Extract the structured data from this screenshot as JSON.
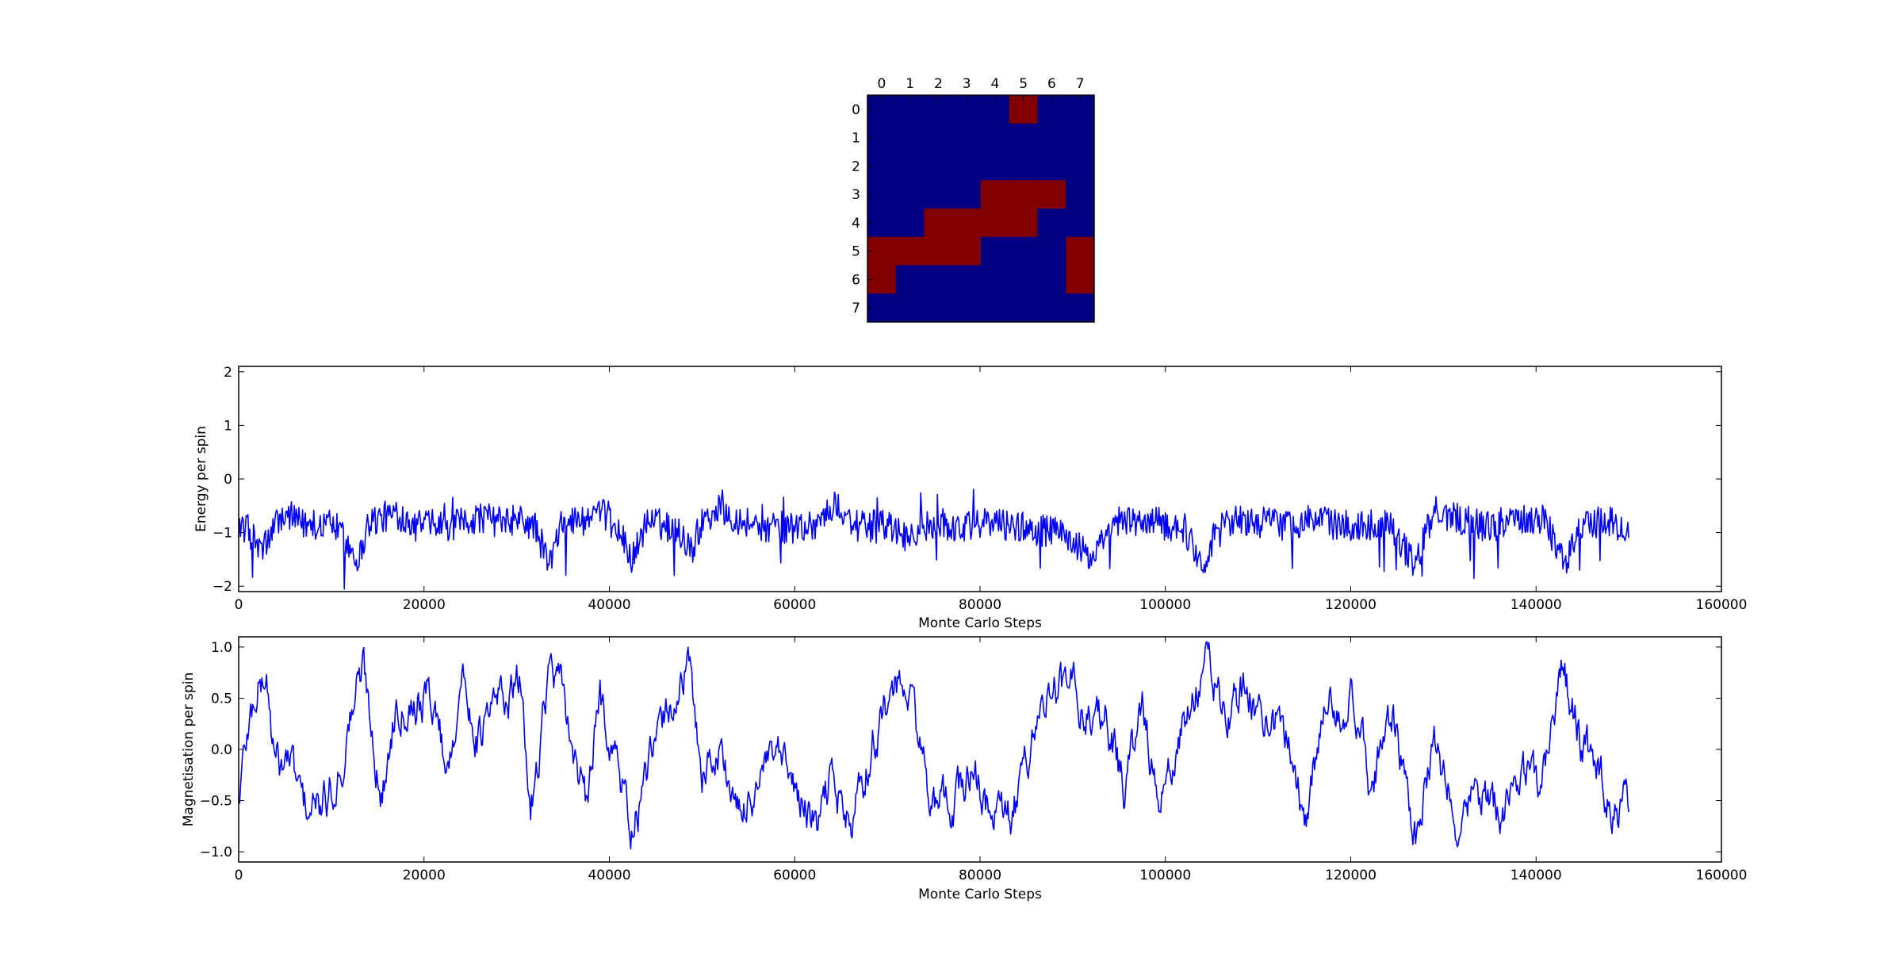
{
  "chart_data": [
    {
      "type": "heatmap",
      "x_ticks": [
        "0",
        "1",
        "2",
        "3",
        "4",
        "5",
        "6",
        "7"
      ],
      "y_ticks": [
        "0",
        "1",
        "2",
        "3",
        "4",
        "5",
        "6",
        "7"
      ],
      "colors": {
        "-1": "#000080",
        "1": "#800000"
      },
      "grid": [
        [
          -1,
          -1,
          -1,
          -1,
          -1,
          1,
          -1,
          -1
        ],
        [
          -1,
          -1,
          -1,
          -1,
          -1,
          -1,
          -1,
          -1
        ],
        [
          -1,
          -1,
          -1,
          -1,
          -1,
          -1,
          -1,
          -1
        ],
        [
          -1,
          -1,
          -1,
          -1,
          1,
          1,
          1,
          -1
        ],
        [
          -1,
          -1,
          1,
          1,
          1,
          1,
          -1,
          -1
        ],
        [
          1,
          1,
          1,
          1,
          -1,
          -1,
          -1,
          1
        ],
        [
          1,
          -1,
          -1,
          -1,
          -1,
          -1,
          -1,
          1
        ],
        [
          -1,
          -1,
          -1,
          -1,
          -1,
          -1,
          -1,
          -1
        ]
      ]
    },
    {
      "type": "line",
      "xlabel": "Monte Carlo Steps",
      "ylabel": "Energy per spin",
      "xlim": [
        0,
        160000
      ],
      "ylim": [
        -2.1,
        2.1
      ],
      "x_ticks": [
        "0",
        "20000",
        "40000",
        "60000",
        "80000",
        "100000",
        "120000",
        "140000",
        "160000"
      ],
      "y_ticks": [
        "−2",
        "−1",
        "0",
        "1",
        "2"
      ],
      "color": "#0000ff",
      "x_step": 100,
      "x_start": 0,
      "x_end": 150000,
      "anchors": [
        [
          0,
          -0.8
        ],
        [
          1500,
          -1.1
        ],
        [
          2500,
          -1.35
        ],
        [
          4500,
          -0.7
        ],
        [
          7000,
          -0.85
        ],
        [
          10000,
          -0.8
        ],
        [
          13000,
          -1.5
        ],
        [
          14000,
          -0.8
        ],
        [
          17000,
          -0.65
        ],
        [
          20000,
          -0.85
        ],
        [
          23000,
          -0.9
        ],
        [
          26000,
          -0.7
        ],
        [
          28000,
          -0.8
        ],
        [
          30000,
          -0.75
        ],
        [
          32000,
          -0.9
        ],
        [
          33500,
          -1.6
        ],
        [
          35000,
          -0.8
        ],
        [
          38000,
          -0.75
        ],
        [
          40000,
          -0.65
        ],
        [
          42500,
          -1.5
        ],
        [
          44000,
          -0.8
        ],
        [
          47000,
          -0.9
        ],
        [
          49000,
          -1.3
        ],
        [
          50000,
          -0.75
        ],
        [
          52000,
          -0.55
        ],
        [
          54000,
          -0.75
        ],
        [
          57000,
          -0.9
        ],
        [
          60000,
          -0.9
        ],
        [
          62000,
          -0.85
        ],
        [
          64500,
          -0.5
        ],
        [
          67000,
          -0.9
        ],
        [
          70000,
          -0.85
        ],
        [
          72000,
          -1.1
        ],
        [
          75000,
          -0.8
        ],
        [
          78000,
          -0.95
        ],
        [
          80000,
          -0.8
        ],
        [
          83000,
          -0.85
        ],
        [
          86000,
          -0.95
        ],
        [
          89000,
          -1.0
        ],
        [
          92000,
          -1.5
        ],
        [
          95000,
          -0.8
        ],
        [
          98000,
          -0.8
        ],
        [
          102000,
          -0.9
        ],
        [
          104000,
          -1.6
        ],
        [
          106000,
          -0.75
        ],
        [
          110000,
          -0.8
        ],
        [
          113000,
          -0.85
        ],
        [
          116000,
          -0.75
        ],
        [
          120000,
          -0.9
        ],
        [
          124000,
          -0.8
        ],
        [
          127000,
          -1.6
        ],
        [
          129000,
          -0.6
        ],
        [
          132000,
          -0.75
        ],
        [
          135000,
          -0.9
        ],
        [
          138000,
          -0.7
        ],
        [
          141000,
          -0.75
        ],
        [
          143000,
          -1.6
        ],
        [
          145000,
          -0.85
        ],
        [
          148000,
          -0.8
        ],
        [
          150000,
          -1.0
        ]
      ]
    },
    {
      "type": "line",
      "xlabel": "Monte Carlo Steps",
      "ylabel": "Magnetisation per spin",
      "xlim": [
        0,
        160000
      ],
      "ylim": [
        -1.1,
        1.1
      ],
      "x_ticks": [
        "0",
        "20000",
        "40000",
        "60000",
        "80000",
        "100000",
        "120000",
        "140000",
        "160000"
      ],
      "y_ticks": [
        "−1.0",
        "−0.5",
        "0.0",
        "0.5",
        "1.0"
      ],
      "color": "#0000ff",
      "x_step": 100,
      "x_start": 0,
      "x_end": 150000,
      "anchors": [
        [
          0,
          -0.5
        ],
        [
          800,
          0.1
        ],
        [
          2000,
          0.6
        ],
        [
          3000,
          0.7
        ],
        [
          4000,
          -0.2
        ],
        [
          5500,
          -0.1
        ],
        [
          7000,
          -0.55
        ],
        [
          9000,
          -0.6
        ],
        [
          11000,
          -0.2
        ],
        [
          12500,
          0.5
        ],
        [
          13500,
          0.8
        ],
        [
          15500,
          -0.5
        ],
        [
          17000,
          0.5
        ],
        [
          19000,
          0.5
        ],
        [
          21000,
          0.5
        ],
        [
          22500,
          -0.2
        ],
        [
          24000,
          0.7
        ],
        [
          26000,
          0.1
        ],
        [
          28000,
          0.5
        ],
        [
          30500,
          0.6
        ],
        [
          31500,
          -0.6
        ],
        [
          33500,
          0.8
        ],
        [
          35000,
          0.5
        ],
        [
          37500,
          -0.6
        ],
        [
          39000,
          0.5
        ],
        [
          41000,
          -0.2
        ],
        [
          42500,
          -0.8
        ],
        [
          44000,
          -0.3
        ],
        [
          46000,
          0.3
        ],
        [
          48500,
          0.8
        ],
        [
          50000,
          -0.2
        ],
        [
          52000,
          0.0
        ],
        [
          54000,
          -0.7
        ],
        [
          56000,
          -0.3
        ],
        [
          58000,
          -0.1
        ],
        [
          60000,
          -0.4
        ],
        [
          62500,
          -0.8
        ],
        [
          64000,
          -0.2
        ],
        [
          66000,
          -0.8
        ],
        [
          68500,
          0.1
        ],
        [
          70500,
          0.6
        ],
        [
          72500,
          0.5
        ],
        [
          75000,
          -0.6
        ],
        [
          77500,
          -0.5
        ],
        [
          79000,
          -0.2
        ],
        [
          81000,
          -0.6
        ],
        [
          83500,
          -0.7
        ],
        [
          86000,
          0.3
        ],
        [
          88000,
          0.6
        ],
        [
          90000,
          0.6
        ],
        [
          92000,
          0.3
        ],
        [
          93500,
          0.4
        ],
        [
          95500,
          -0.4
        ],
        [
          97500,
          0.4
        ],
        [
          99500,
          -0.6
        ],
        [
          101500,
          0.1
        ],
        [
          104500,
          0.9
        ],
        [
          106500,
          0.3
        ],
        [
          108500,
          0.6
        ],
        [
          111000,
          0.3
        ],
        [
          113500,
          0.1
        ],
        [
          115000,
          -0.7
        ],
        [
          117500,
          0.5
        ],
        [
          120000,
          0.5
        ],
        [
          122000,
          -0.3
        ],
        [
          124500,
          0.3
        ],
        [
          127000,
          -0.9
        ],
        [
          129000,
          0.0
        ],
        [
          131500,
          -0.7
        ],
        [
          133500,
          -0.4
        ],
        [
          136000,
          -0.6
        ],
        [
          138500,
          -0.2
        ],
        [
          140500,
          -0.3
        ],
        [
          143000,
          0.8
        ],
        [
          145000,
          0.0
        ],
        [
          147000,
          -0.3
        ],
        [
          149000,
          -0.6
        ],
        [
          150000,
          -0.5
        ]
      ]
    }
  ]
}
